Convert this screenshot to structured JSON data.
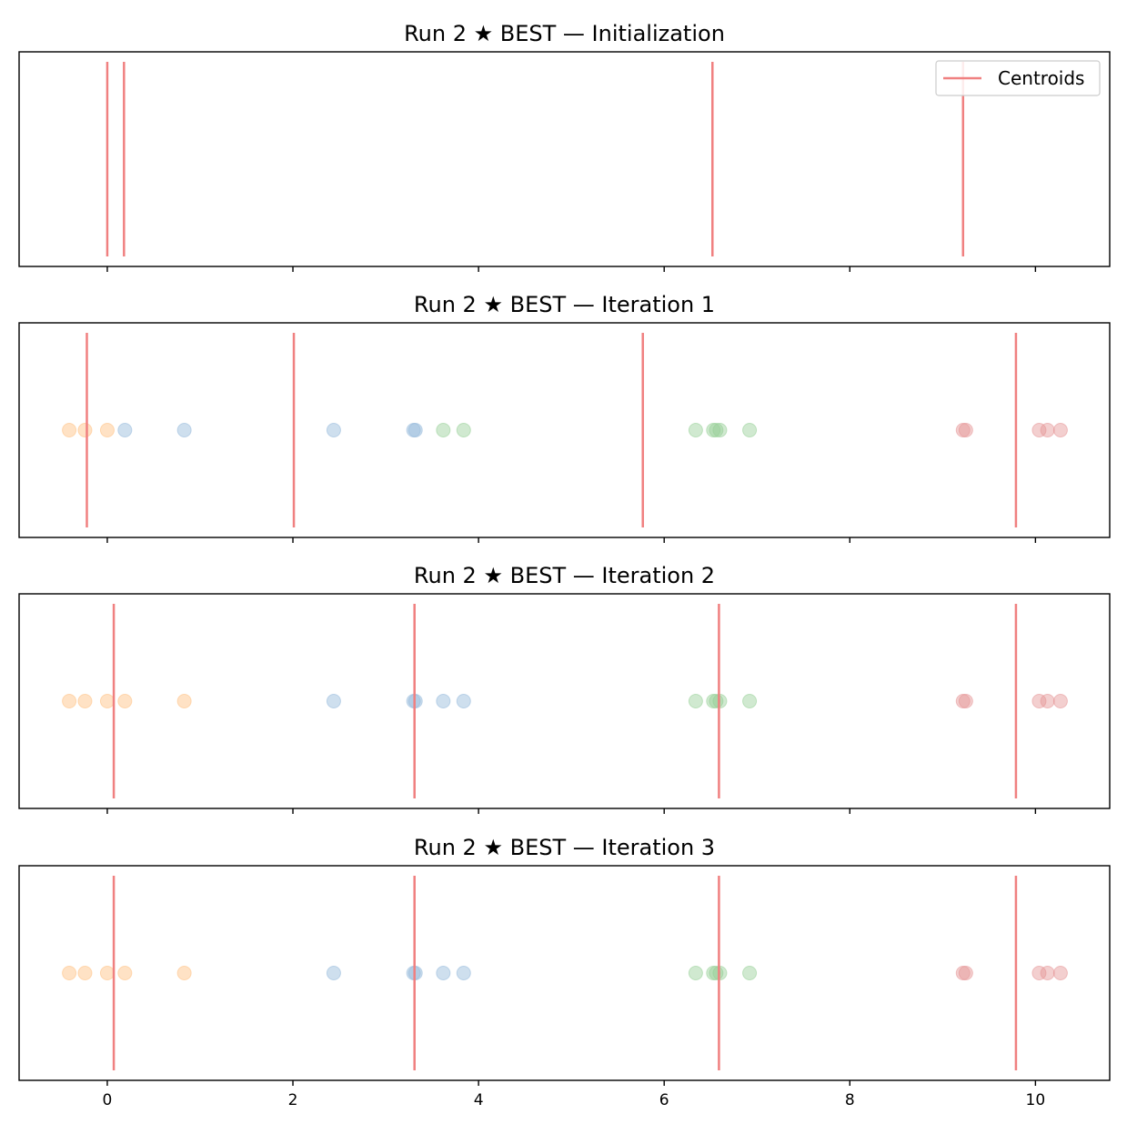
{
  "chart_data": [
    {
      "type": "scatter",
      "title": "Run 2 ★ BEST — Initialization",
      "xlim": [
        -0.95,
        10.8
      ],
      "yticks": false,
      "xtick_labels_visible": false,
      "centroids": [
        0.0,
        0.18,
        6.52,
        9.22
      ],
      "points": [],
      "legend": {
        "label": "Centroids",
        "color": "#f08080",
        "placement": "top-right"
      }
    },
    {
      "type": "scatter",
      "title": "Run 2 ★ BEST — Iteration 1",
      "xlim": [
        -0.95,
        10.8
      ],
      "yticks": false,
      "xtick_labels_visible": false,
      "centroids": [
        -0.22,
        2.01,
        5.77,
        9.79
      ],
      "points": [
        {
          "x": -0.41,
          "cluster": "orange"
        },
        {
          "x": -0.24,
          "cluster": "orange"
        },
        {
          "x": 0.0,
          "cluster": "orange"
        },
        {
          "x": 0.19,
          "cluster": "blue"
        },
        {
          "x": 0.83,
          "cluster": "blue"
        },
        {
          "x": 2.44,
          "cluster": "blue"
        },
        {
          "x": 3.3,
          "cluster": "blue"
        },
        {
          "x": 3.32,
          "cluster": "blue"
        },
        {
          "x": 3.62,
          "cluster": "green"
        },
        {
          "x": 3.84,
          "cluster": "green"
        },
        {
          "x": 6.34,
          "cluster": "green"
        },
        {
          "x": 6.53,
          "cluster": "green"
        },
        {
          "x": 6.56,
          "cluster": "green"
        },
        {
          "x": 6.6,
          "cluster": "green"
        },
        {
          "x": 6.92,
          "cluster": "green"
        },
        {
          "x": 9.22,
          "cluster": "red"
        },
        {
          "x": 9.25,
          "cluster": "red"
        },
        {
          "x": 10.04,
          "cluster": "red"
        },
        {
          "x": 10.13,
          "cluster": "red"
        },
        {
          "x": 10.27,
          "cluster": "red"
        }
      ]
    },
    {
      "type": "scatter",
      "title": "Run 2 ★ BEST — Iteration 2",
      "xlim": [
        -0.95,
        10.8
      ],
      "yticks": false,
      "xtick_labels_visible": false,
      "centroids": [
        0.07,
        3.31,
        6.59,
        9.79
      ],
      "points": [
        {
          "x": -0.41,
          "cluster": "orange"
        },
        {
          "x": -0.24,
          "cluster": "orange"
        },
        {
          "x": 0.0,
          "cluster": "orange"
        },
        {
          "x": 0.19,
          "cluster": "orange"
        },
        {
          "x": 0.83,
          "cluster": "orange"
        },
        {
          "x": 2.44,
          "cluster": "blue"
        },
        {
          "x": 3.3,
          "cluster": "blue"
        },
        {
          "x": 3.32,
          "cluster": "blue"
        },
        {
          "x": 3.62,
          "cluster": "blue"
        },
        {
          "x": 3.84,
          "cluster": "blue"
        },
        {
          "x": 6.34,
          "cluster": "green"
        },
        {
          "x": 6.53,
          "cluster": "green"
        },
        {
          "x": 6.56,
          "cluster": "green"
        },
        {
          "x": 6.6,
          "cluster": "green"
        },
        {
          "x": 6.92,
          "cluster": "green"
        },
        {
          "x": 9.22,
          "cluster": "red"
        },
        {
          "x": 9.25,
          "cluster": "red"
        },
        {
          "x": 10.04,
          "cluster": "red"
        },
        {
          "x": 10.13,
          "cluster": "red"
        },
        {
          "x": 10.27,
          "cluster": "red"
        }
      ]
    },
    {
      "type": "scatter",
      "title": "Run 2 ★ BEST — Iteration 3",
      "xlim": [
        -0.95,
        10.8
      ],
      "yticks": false,
      "xtick_labels_visible": true,
      "xticks": [
        0,
        2,
        4,
        6,
        8,
        10
      ],
      "centroids": [
        0.07,
        3.31,
        6.59,
        9.79
      ],
      "points": [
        {
          "x": -0.41,
          "cluster": "orange"
        },
        {
          "x": -0.24,
          "cluster": "orange"
        },
        {
          "x": 0.0,
          "cluster": "orange"
        },
        {
          "x": 0.19,
          "cluster": "orange"
        },
        {
          "x": 0.83,
          "cluster": "orange"
        },
        {
          "x": 2.44,
          "cluster": "blue"
        },
        {
          "x": 3.3,
          "cluster": "blue"
        },
        {
          "x": 3.32,
          "cluster": "blue"
        },
        {
          "x": 3.62,
          "cluster": "blue"
        },
        {
          "x": 3.84,
          "cluster": "blue"
        },
        {
          "x": 6.34,
          "cluster": "green"
        },
        {
          "x": 6.53,
          "cluster": "green"
        },
        {
          "x": 6.56,
          "cluster": "green"
        },
        {
          "x": 6.6,
          "cluster": "green"
        },
        {
          "x": 6.92,
          "cluster": "green"
        },
        {
          "x": 9.22,
          "cluster": "red"
        },
        {
          "x": 9.25,
          "cluster": "red"
        },
        {
          "x": 10.04,
          "cluster": "red"
        },
        {
          "x": 10.13,
          "cluster": "red"
        },
        {
          "x": 10.27,
          "cluster": "red"
        }
      ]
    }
  ],
  "colors": {
    "centroid": "#f08080",
    "orange": "#ffbf7f",
    "blue": "#93b8da",
    "green": "#96cf96",
    "red": "#e59495",
    "axes": "#000000"
  },
  "xticks": [
    0,
    2,
    4,
    6,
    8,
    10
  ]
}
